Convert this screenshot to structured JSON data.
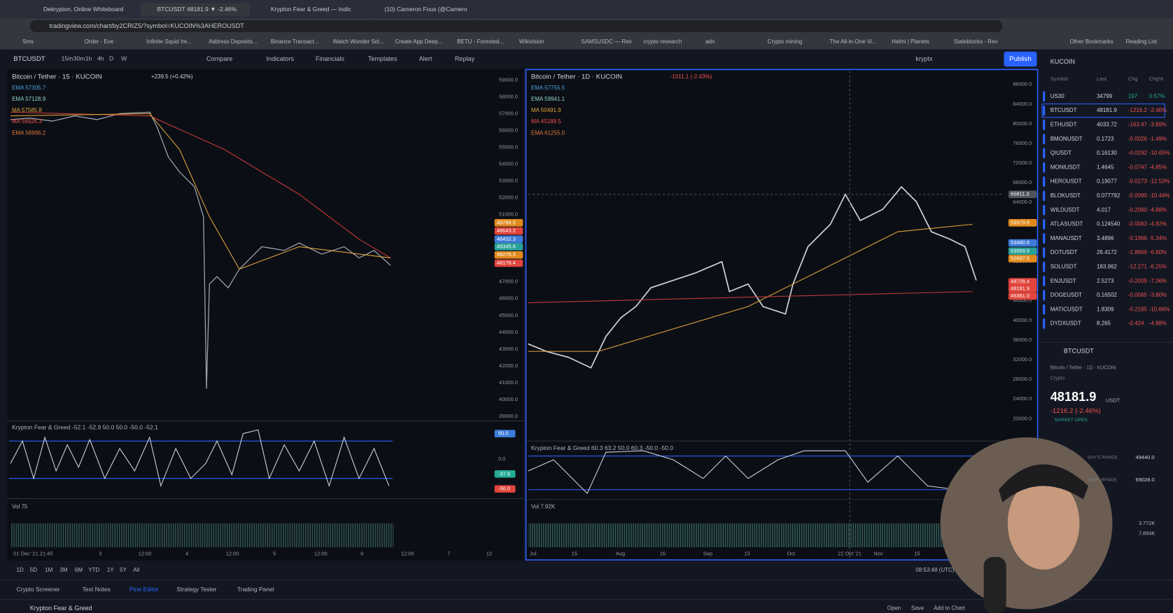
{
  "browser": {
    "tabs": [
      "Dekrypton, Online Whiteboard",
      "BTCUSDT 48181.9 ▼ -2.46%",
      "Krypton Fear & Greed — Indic",
      "(10) Cameron Fous (@Camero"
    ],
    "url": "tradingview.com/chart/by2CRIZ5/?symbol=KUCOIN%3AHEROUSDT",
    "bookmarks": [
      "Sms",
      "Order - Eve",
      "Infinite Squid Ire...",
      "Address Deposits...",
      "Binance Transact...",
      "Watch Wonder Sol...",
      "Create App Deep...",
      "BETU - Forested...",
      "Wikivision",
      "SAMSUSDC — Rev",
      "crypto research",
      "adn",
      "Crypto mining",
      "The All-in-One Vi...",
      "Helmi | Planets",
      "Stateblocks - Rev",
      "Other Bookmarks",
      "Reading List"
    ]
  },
  "toolbar": {
    "symbol": "BTCUSDT",
    "intervals": [
      "15m",
      "30m",
      "1h",
      "4h",
      "D",
      "W"
    ],
    "buttons": [
      "Compare",
      "Indicators",
      "Financials",
      "Templates",
      "Alert",
      "Replay"
    ],
    "user": "kryptx",
    "publish": "Publish"
  },
  "left_chart": {
    "title": "Bitcoin / Tether · 15 · KUCOIN",
    "change": "+239.5 (+0.42%)",
    "indicators": [
      "EMA 57305.7",
      "EMA 57128.9",
      "MA 57585.8",
      "MA 56926.3",
      "EMA 56996.2"
    ],
    "price_axis": [
      "59000.0",
      "58000.0",
      "57000.0",
      "56000.0",
      "55000.0",
      "54000.0",
      "53000.0",
      "52000.0",
      "51000.0",
      "50000.0",
      "49000.0",
      "48000.0",
      "47000.0",
      "46000.0",
      "45000.0",
      "44000.0",
      "43000.0",
      "42000.0",
      "41000.0",
      "40000.0",
      "39000.0"
    ],
    "price_tags": [
      "48786.0",
      "48643.2",
      "48452.3",
      "48345.6",
      "48276.3",
      "48178.4"
    ],
    "oscillator": "Krypton Fear & Greed -52.1 -52.9 50.0 50.0 -50.0 -52.1",
    "oscillator_axis": [
      "50.0",
      "0.0",
      "-37.9",
      "-50.0"
    ],
    "volume": "Vol 75",
    "time_axis": [
      "01 Dec '21  21:45",
      "3",
      "12:00",
      "4",
      "12:00",
      "5",
      "12:00",
      "6",
      "12:00",
      "7",
      "12"
    ]
  },
  "right_chart": {
    "title": "Bitcoin / Tether · 1D · KUCOIN",
    "change": "-1511.1 (-2.43%)",
    "indicators": [
      "EMA 57755.5",
      "EMA 59941.1",
      "MA 50491.9",
      "MA 45188.5",
      "EMA 61255.0"
    ],
    "price_axis": [
      "88000.0",
      "84000.0",
      "80000.0",
      "76000.0",
      "72000.0",
      "68000.0",
      "64000.0",
      "60000.0",
      "56000.0",
      "52000.0",
      "48000.0",
      "44000.0",
      "40000.0",
      "36000.0",
      "32000.0",
      "28000.0",
      "24000.0",
      "20000.0"
    ],
    "price_tags": [
      "65811.3",
      "59979.8",
      "53480.6",
      "53959.5",
      "52697.5",
      "48728.4",
      "48181.9",
      "46361.0"
    ],
    "oscillator": "Krypton Fear & Greed 60.3 63.2 50.0 60.3 -50.0 -50.0",
    "volume": "Vol 7.92K",
    "volume_axis": [
      "3.772K",
      "7.894K"
    ],
    "time_axis": [
      "Jul",
      "15",
      "Aug",
      "16",
      "Sep",
      "15",
      "Oct",
      "22 Oct '21",
      "Nov",
      "15"
    ]
  },
  "watchlist": {
    "exchange": "KUCOIN",
    "columns": [
      "Symbol",
      "Last",
      "Chg",
      "Chg%"
    ],
    "rows": [
      [
        "US30",
        "34799",
        "197",
        "0.57%"
      ],
      [
        "BTCUSDT",
        "48181.9",
        "-1216.2",
        "-2.46%"
      ],
      [
        "ETHUSDT",
        "4033.72",
        "-163.47",
        "-3.89%"
      ],
      [
        "BMONUSDT",
        "0.1723",
        "-0.0026",
        "-1.49%"
      ],
      [
        "QIUSDT",
        "0.16130",
        "-0.0192",
        "-10.65%"
      ],
      [
        "MONIUSDT",
        "1.4645",
        "-0.0747",
        "-4.85%"
      ],
      [
        "HEROUSDT",
        "0.19077",
        "-0.0273",
        "-12.53%"
      ],
      [
        "BLOKUSDT",
        "0.077792",
        "-0.0090",
        "-10.44%"
      ],
      [
        "WILDUSDT",
        "4.017",
        "-0.2060",
        "-4.88%"
      ],
      [
        "ATLASUSDT",
        "0.124540",
        "-0.0063",
        "-4.82%"
      ],
      [
        "MANAUSDT",
        "3.4896",
        "-0.1966",
        "-5.34%"
      ],
      [
        "DOTUSDT",
        "26.4172",
        "-1.8669",
        "-6.60%"
      ],
      [
        "SOLUSDT",
        "183.962",
        "-12.271",
        "-6.25%"
      ],
      [
        "ENJUSDT",
        "2.5273",
        "-0.2009",
        "-7.36%"
      ],
      [
        "DOGEUSDT",
        "0.16502",
        "-0.0065",
        "-3.80%"
      ],
      [
        "MATICUSDT",
        "1.8309",
        "-0.2185",
        "-10.66%"
      ],
      [
        "DYDXUSDT",
        "8.265",
        "-0.424",
        "-4.88%"
      ]
    ]
  },
  "details": {
    "symbol": "BTCUSDT",
    "name": "Bitcoin / Tether · 1D · KUCOIN",
    "category": "Crypto",
    "price": "48181.9",
    "currency": "USDT",
    "change": "-1216.2 (-2.46%)",
    "status": "MARKET OPEN",
    "day_range_label": "DAY'S RANGE",
    "day_range": "49440.0",
    "year_range_label": "52WK RANGE",
    "year_range": "69028.0"
  },
  "bottom": {
    "ranges": [
      "1D",
      "5D",
      "1M",
      "3M",
      "6M",
      "YTD",
      "1Y",
      "5Y",
      "All"
    ],
    "clock": "08:53:48 (UTC)",
    "tabs": [
      "Crypto Screener",
      "Text Notes",
      "Pine Editor",
      "Strategy Tester",
      "Trading Panel"
    ],
    "script": "Krypton Fear & Greed",
    "actions": [
      "Open",
      "Save",
      "Add to Chart"
    ]
  }
}
